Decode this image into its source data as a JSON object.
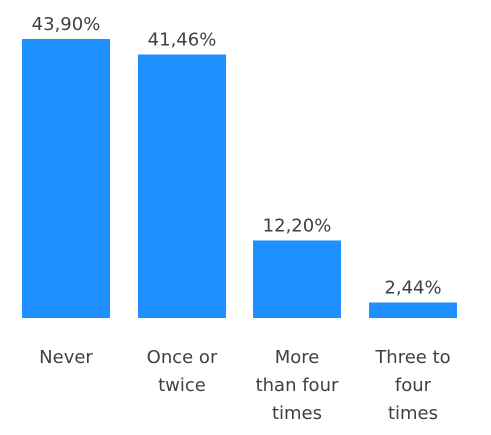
{
  "chart_data": {
    "type": "bar",
    "categories": [
      [
        "Never"
      ],
      [
        "Once or",
        "twice"
      ],
      [
        "More",
        "than four",
        "times"
      ],
      [
        "Three to",
        "four",
        "times"
      ]
    ],
    "values": [
      43.9,
      41.46,
      12.2,
      2.44
    ],
    "value_labels": [
      "43,90%",
      "41,46%",
      "12,20%",
      "2,44%"
    ],
    "ylim": [
      0,
      43.9
    ],
    "grid": false,
    "legend": "none",
    "bar_color": "#1E90FF"
  }
}
